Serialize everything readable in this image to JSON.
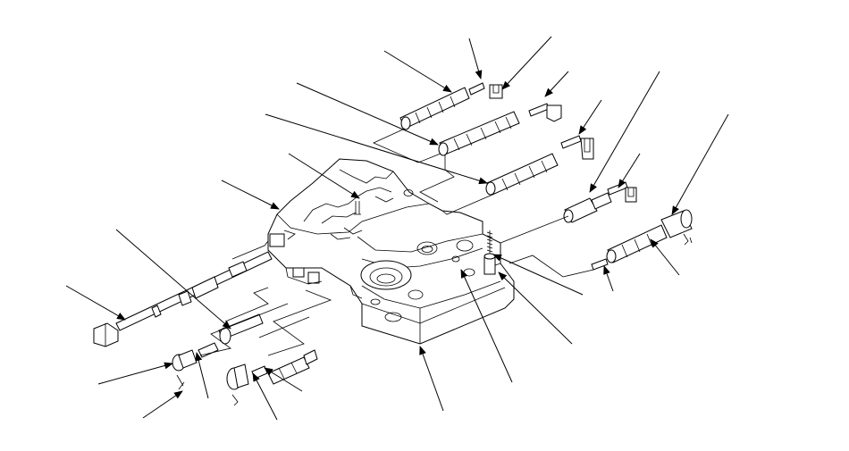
{
  "figure": {
    "background": "#ffffff",
    "ink": "#000000",
    "leaders_with_arrowheads": 26
  }
}
